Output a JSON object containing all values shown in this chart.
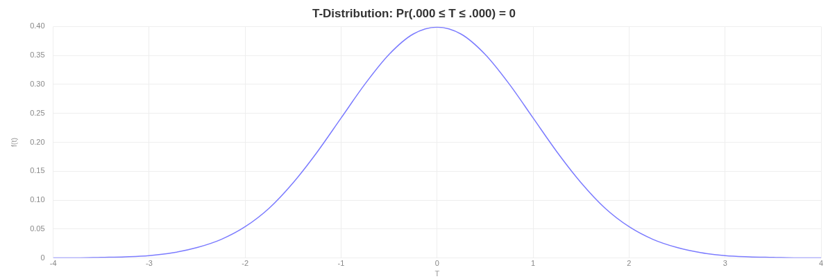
{
  "chart_data": {
    "type": "line",
    "title": "T-Distribution: Pr(.000 ≤ T ≤ .000) = 0",
    "xlabel": "T",
    "ylabel": "f(t)",
    "x": [
      -4,
      -3.75,
      -3.5,
      -3.25,
      -3,
      -2.75,
      -2.5,
      -2.25,
      -2,
      -1.75,
      -1.5,
      -1.25,
      -1,
      -0.75,
      -0.5,
      -0.25,
      0,
      0.25,
      0.5,
      0.75,
      1,
      1.25,
      1.5,
      1.75,
      2,
      2.25,
      2.5,
      2.75,
      3,
      3.25,
      3.5,
      3.75,
      4
    ],
    "series": [
      {
        "color": "#7b7bff",
        "values": [
          0.0,
          0.0,
          0.001,
          0.002,
          0.004,
          0.009,
          0.018,
          0.032,
          0.054,
          0.086,
          0.13,
          0.183,
          0.242,
          0.301,
          0.352,
          0.387,
          0.399,
          0.387,
          0.352,
          0.301,
          0.242,
          0.183,
          0.13,
          0.086,
          0.054,
          0.032,
          0.018,
          0.009,
          0.004,
          0.002,
          0.001,
          0.0,
          0.0
        ]
      }
    ],
    "xlim": [
      -4,
      4
    ],
    "xticks": [
      -4,
      -3,
      -2,
      -1,
      0,
      1,
      2,
      3,
      4
    ],
    "ylim": [
      0,
      0.4
    ],
    "yticks": [
      0,
      0.05,
      {
        "value": 0.1,
        "label": "0.10"
      },
      0.15,
      {
        "value": 0.2,
        "label": "0.20"
      },
      0.25,
      {
        "value": 0.3,
        "label": "0.30"
      },
      0.35,
      {
        "value": 0.4,
        "label": "0.40"
      }
    ],
    "grid": true,
    "legend": false,
    "marker": "none",
    "line_style": "solid"
  }
}
